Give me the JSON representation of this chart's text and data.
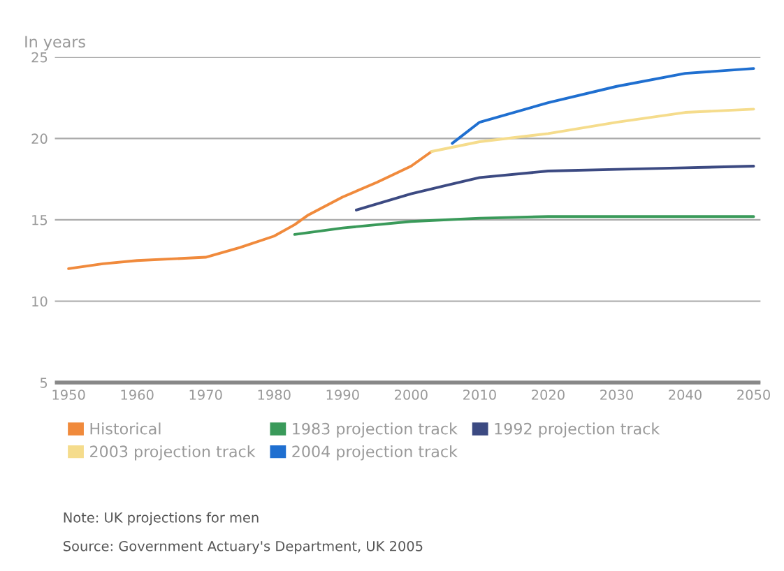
{
  "chart_data": {
    "type": "line",
    "ylabel": "In years",
    "xlim": [
      1948,
      2051
    ],
    "xticks": [
      1950,
      1960,
      1970,
      1980,
      1990,
      2000,
      2010,
      2020,
      2030,
      2040,
      2050
    ],
    "ylim": [
      5,
      25
    ],
    "yticks": [
      5,
      10,
      15,
      20,
      25
    ],
    "grid": "y",
    "legend": "bottom",
    "line_style": "solid",
    "series": [
      {
        "name": "Historical",
        "color": "#f08a3c",
        "x": [
          1950,
          1955,
          1960,
          1965,
          1970,
          1975,
          1980,
          1983,
          1985,
          1990,
          1995,
          2000,
          2003
        ],
        "values": [
          12.0,
          12.3,
          12.5,
          12.6,
          12.7,
          13.3,
          14.0,
          14.7,
          15.3,
          16.4,
          17.3,
          18.3,
          19.2
        ]
      },
      {
        "name": "1983 projection track",
        "color": "#3a9a5a",
        "x": [
          1983,
          1990,
          2000,
          2010,
          2020,
          2030,
          2040,
          2050
        ],
        "values": [
          14.1,
          14.5,
          14.9,
          15.1,
          15.2,
          15.2,
          15.2,
          15.2
        ]
      },
      {
        "name": "1992 projection track",
        "color": "#3c4a82",
        "x": [
          1992,
          2000,
          2005,
          2010,
          2020,
          2030,
          2040,
          2050
        ],
        "values": [
          15.6,
          16.6,
          17.1,
          17.6,
          18.0,
          18.1,
          18.2,
          18.3
        ]
      },
      {
        "name": "2003 projection track",
        "color": "#f5dc8c",
        "x": [
          2003,
          2010,
          2020,
          2030,
          2040,
          2050
        ],
        "values": [
          19.2,
          19.8,
          20.3,
          21.0,
          21.6,
          21.8
        ]
      },
      {
        "name": "2004 projection track",
        "color": "#1f6fd0",
        "x": [
          2006,
          2010,
          2020,
          2030,
          2040,
          2050
        ],
        "values": [
          19.7,
          21.0,
          22.2,
          23.2,
          24.0,
          24.3
        ]
      }
    ],
    "annotations": [
      "Note: UK projections for men",
      "Source: Government Actuary's Department, UK 2005"
    ]
  }
}
